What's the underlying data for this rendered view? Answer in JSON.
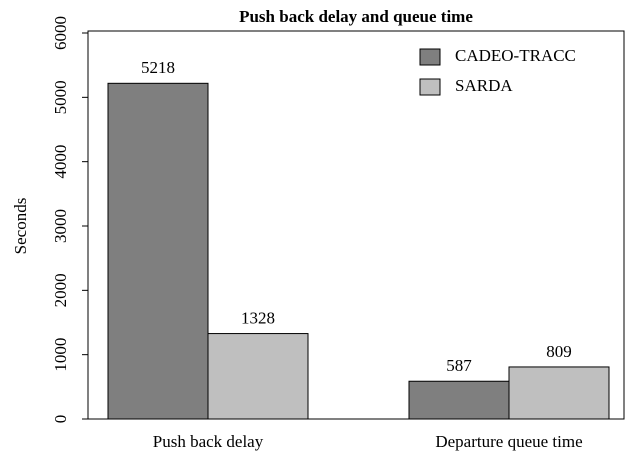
{
  "chart_data": {
    "type": "bar",
    "title": "Push back delay and queue time",
    "ylabel": "Seconds",
    "categories": [
      "Push back delay",
      "Departure queue time"
    ],
    "series": [
      {
        "name": "CADEO-TRACC",
        "color": "#7f7f7f",
        "values": [
          5218,
          587
        ]
      },
      {
        "name": "SARDA",
        "color": "#bfbfbf",
        "values": [
          1328,
          809
        ]
      }
    ],
    "ylim": [
      0,
      6000
    ],
    "yticks": [
      0,
      1000,
      2000,
      3000,
      4000,
      5000,
      6000
    ],
    "legend": "top-right"
  }
}
